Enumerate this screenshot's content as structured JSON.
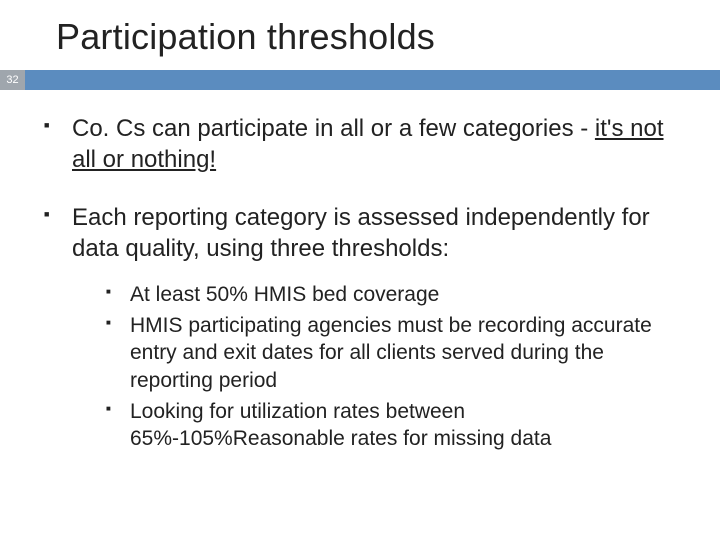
{
  "title": "Participation thresholds",
  "page_number": "32",
  "colors": {
    "bar": "#5b8cbf",
    "page_num_bg": "#9fa6ad",
    "text": "#222222",
    "background": "#ffffff"
  },
  "typography": {
    "title_fontsize": 36,
    "body_fontsize": 24,
    "sub_fontsize": 21
  },
  "bullets": {
    "item1_prefix": "Co. Cs can participate in all or a few categories - ",
    "item1_underlined": "it's not all or nothing!",
    "item2": "Each reporting category is assessed independently for data quality, using three thresholds:",
    "sub1": "At least 50% HMIS bed coverage",
    "sub2": "HMIS participating agencies must be recording accurate entry and exit dates for all clients served during the reporting period",
    "sub3": "Looking for utilization rates between 65%-105%Reasonable rates for missing data"
  }
}
